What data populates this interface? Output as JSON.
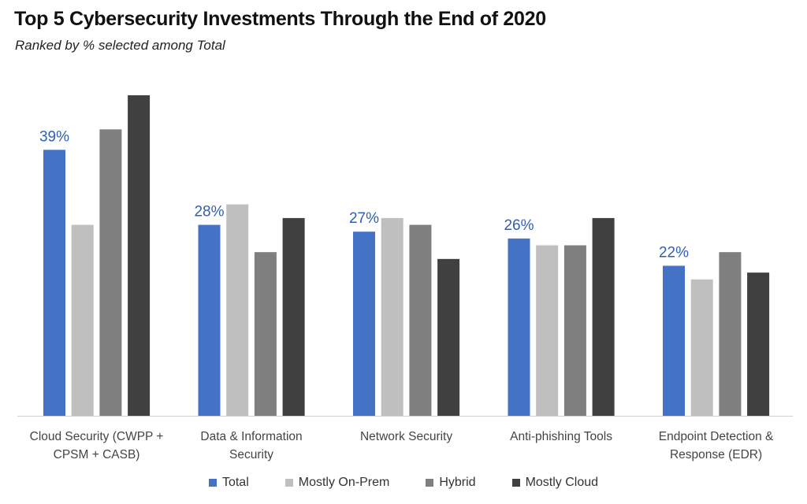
{
  "chart_data": {
    "type": "bar",
    "title": "Top 5 Cybersecurity Investments Through the End of 2020",
    "subtitle": "Ranked by % selected among Total",
    "xlabel": "",
    "ylabel": "",
    "ylim": [
      0,
      47
    ],
    "grid": false,
    "legend_position": "bottom",
    "categories": [
      [
        "Cloud Security (CWPP +",
        "CPSM + CASB)"
      ],
      [
        "Data & Information",
        "Security"
      ],
      [
        "Network Security"
      ],
      [
        "Anti-phishing Tools"
      ],
      [
        "Endpoint Detection &",
        "Response (EDR)"
      ]
    ],
    "series": [
      {
        "name": "Total",
        "color": "#4472c4",
        "values": [
          39,
          28,
          27,
          26,
          22
        ]
      },
      {
        "name": "Mostly On-Prem",
        "color": "#bfbfbf",
        "values": [
          28,
          31,
          29,
          25,
          20
        ]
      },
      {
        "name": "Hybrid",
        "color": "#7f7f7f",
        "values": [
          42,
          24,
          28,
          25,
          24
        ]
      },
      {
        "name": "Mostly Cloud",
        "color": "#404040",
        "values": [
          47,
          29,
          23,
          29,
          21
        ]
      }
    ],
    "data_labels": {
      "series": "Total",
      "text": [
        "39%",
        "28%",
        "27%",
        "26%",
        "22%"
      ]
    }
  }
}
